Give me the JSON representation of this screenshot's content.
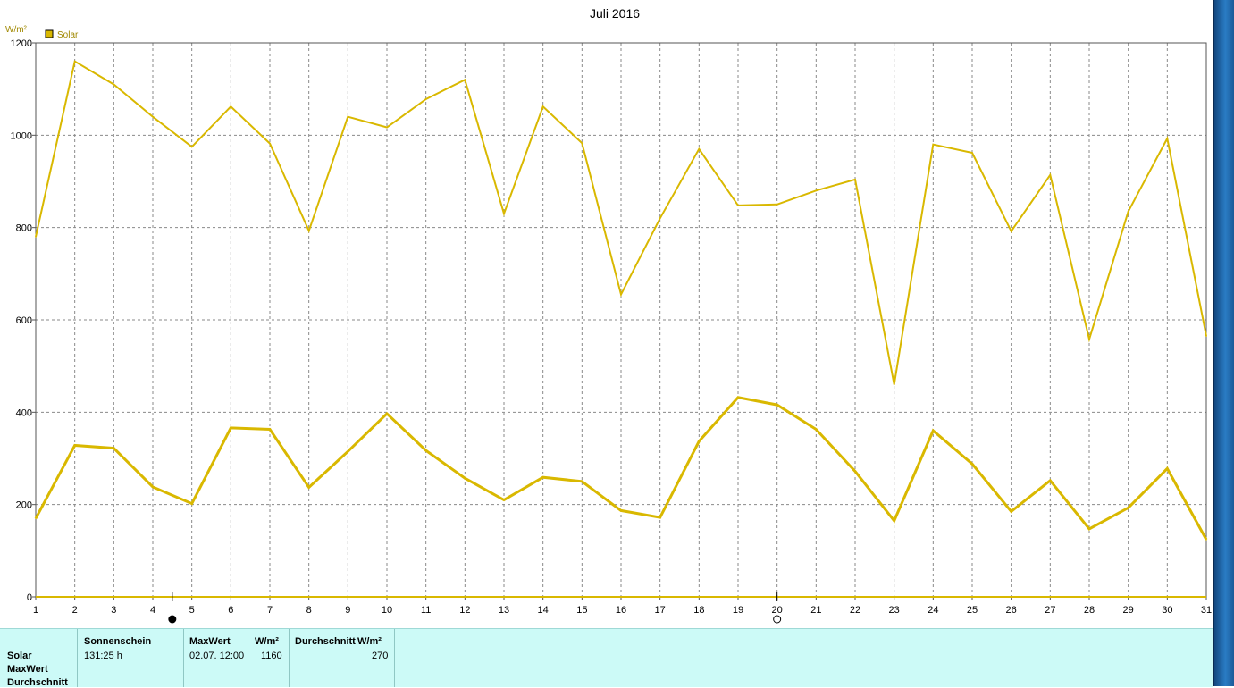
{
  "chart_data": {
    "type": "line",
    "title": "Juli 2016",
    "ylabel": "W/m²",
    "legend": [
      {
        "name": "Solar",
        "color": "#d9b800"
      }
    ],
    "legend_position": "top-left",
    "grid": true,
    "ylim": [
      0,
      1200
    ],
    "yticks": [
      "0",
      "200",
      "400",
      "600",
      "800",
      "1000",
      "1200"
    ],
    "x": [
      "1",
      "2",
      "3",
      "4",
      "5",
      "6",
      "7",
      "8",
      "9",
      "10",
      "11",
      "12",
      "13",
      "14",
      "15",
      "16",
      "17",
      "18",
      "19",
      "20",
      "21",
      "22",
      "23",
      "24",
      "25",
      "26",
      "27",
      "28",
      "29",
      "30",
      "31"
    ],
    "series": [
      {
        "name": "MaxWert",
        "color": "#d9b800",
        "values": [
          780,
          1160,
          1110,
          1040,
          975,
          1062,
          982,
          793,
          1040,
          1017,
          1078,
          1120,
          830,
          1062,
          983,
          655,
          820,
          970,
          848,
          850,
          880,
          904,
          460,
          980,
          962,
          792,
          914,
          558,
          835,
          993,
          565
        ]
      },
      {
        "name": "Durchschnitt",
        "color": "#d9b800",
        "values": [
          170,
          328,
          322,
          238,
          202,
          366,
          363,
          237,
          315,
          397,
          317,
          257,
          210,
          259,
          250,
          187,
          172,
          337,
          432,
          416,
          363,
          272,
          165,
          360,
          288,
          185,
          252,
          147,
          193,
          278,
          124
        ]
      }
    ],
    "moon_markers": [
      {
        "day": "4.5",
        "phase": "new-moon"
      },
      {
        "day": "20",
        "phase": "full-moon"
      }
    ]
  },
  "panel": {
    "rows": [
      "Solar",
      "MaxWert",
      "Durchschnitt"
    ],
    "sunshine": {
      "header": "Sonnenschein",
      "value": "131:25 h"
    },
    "max": {
      "header": "MaxWert",
      "unit": "W/m²",
      "date": "02.07.  12:00",
      "value": "1160"
    },
    "avg": {
      "header": "Durchschnitt",
      "unit": "W/m²",
      "value": "270"
    }
  }
}
